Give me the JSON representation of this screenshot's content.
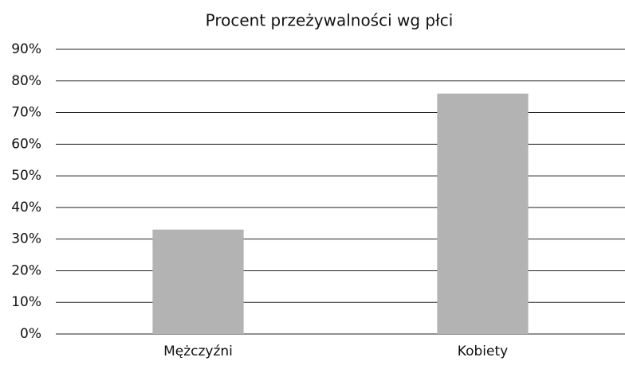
{
  "chart_data": {
    "type": "bar",
    "title": "Procent przeżywalności wg płci",
    "categories": [
      "Mężczyźni",
      "Kobiety"
    ],
    "values": [
      33,
      76
    ],
    "color": "#b3b3b3",
    "ylim": [
      0,
      90
    ],
    "yticks": [
      {
        "value": 0,
        "label": "0%"
      },
      {
        "value": 10,
        "label": "10%"
      },
      {
        "value": 20,
        "label": "20%"
      },
      {
        "value": 30,
        "label": "30%"
      },
      {
        "value": 40,
        "label": "40%"
      },
      {
        "value": 50,
        "label": "50%"
      },
      {
        "value": 60,
        "label": "60%"
      },
      {
        "value": 70,
        "label": "70%"
      },
      {
        "value": 80,
        "label": "80%"
      },
      {
        "value": 90,
        "label": "90%"
      }
    ],
    "grid": true
  }
}
